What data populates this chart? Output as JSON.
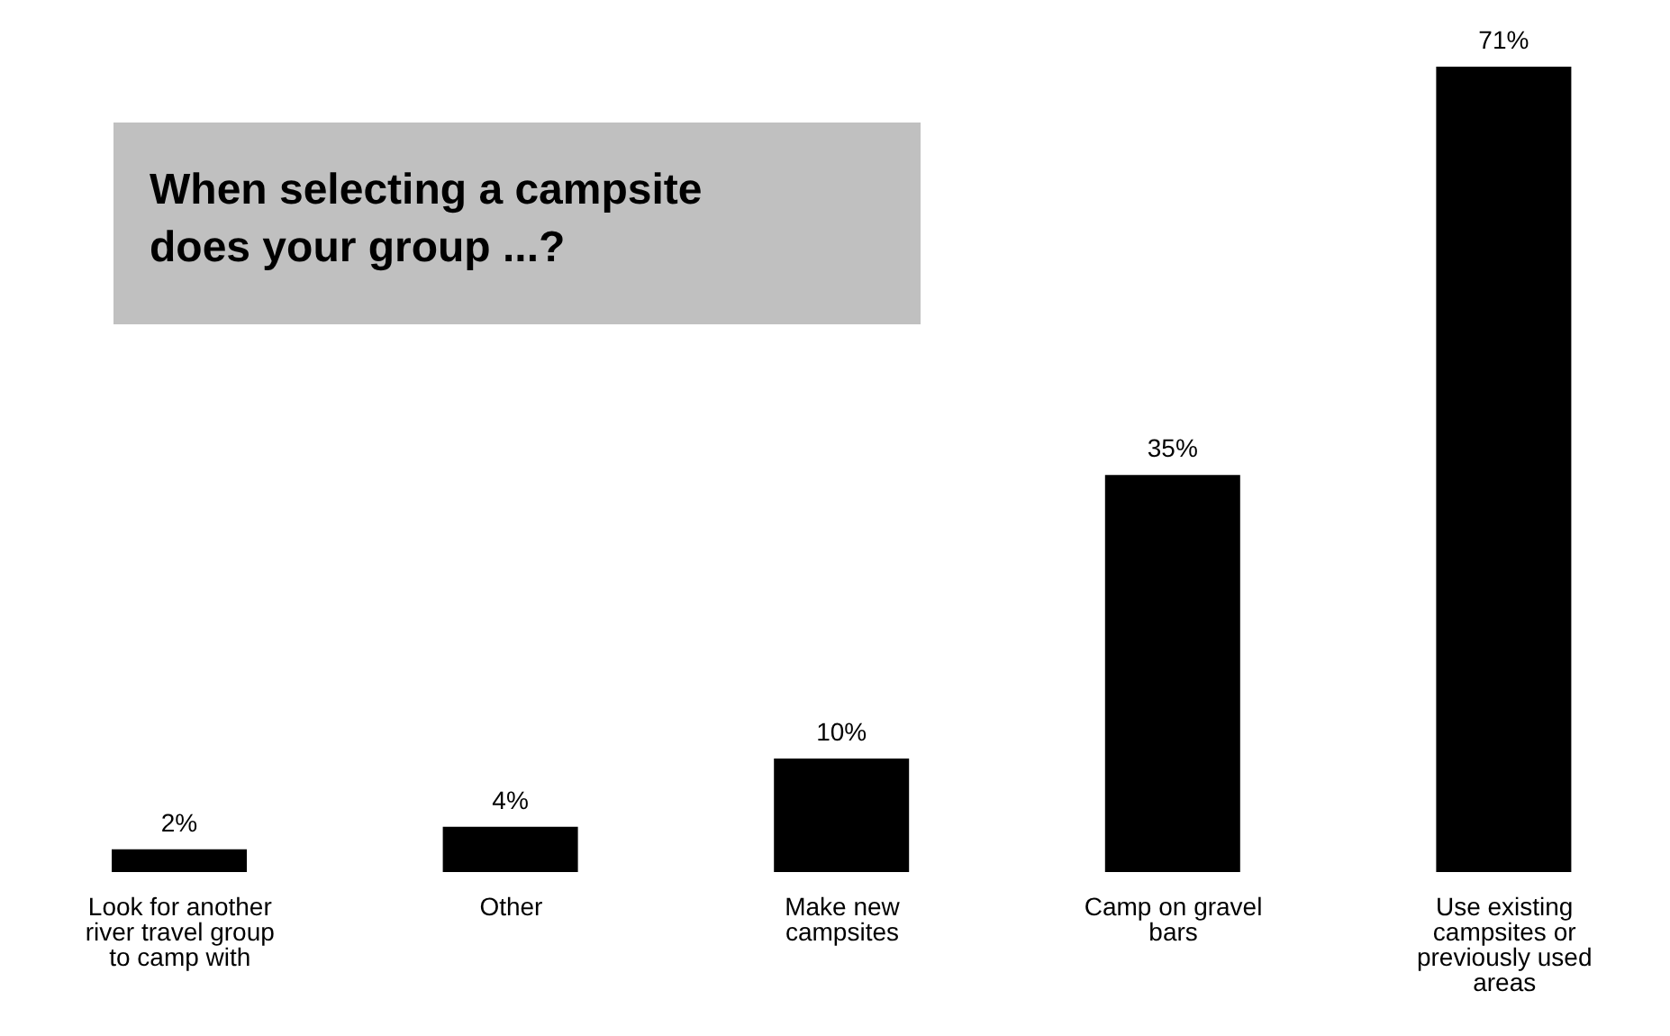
{
  "chart_data": {
    "type": "bar",
    "title": "When selecting a campsite does your group ...?",
    "categories": [
      "Look for another river travel group to camp with",
      "Other",
      "Make new campsites",
      "Camp on gravel bars",
      "Use existing campsites or previously used areas"
    ],
    "values": [
      2,
      4,
      10,
      35,
      71
    ],
    "value_labels": [
      "2%",
      "4%",
      "10%",
      "35%",
      "71%"
    ],
    "color": "#000000"
  }
}
